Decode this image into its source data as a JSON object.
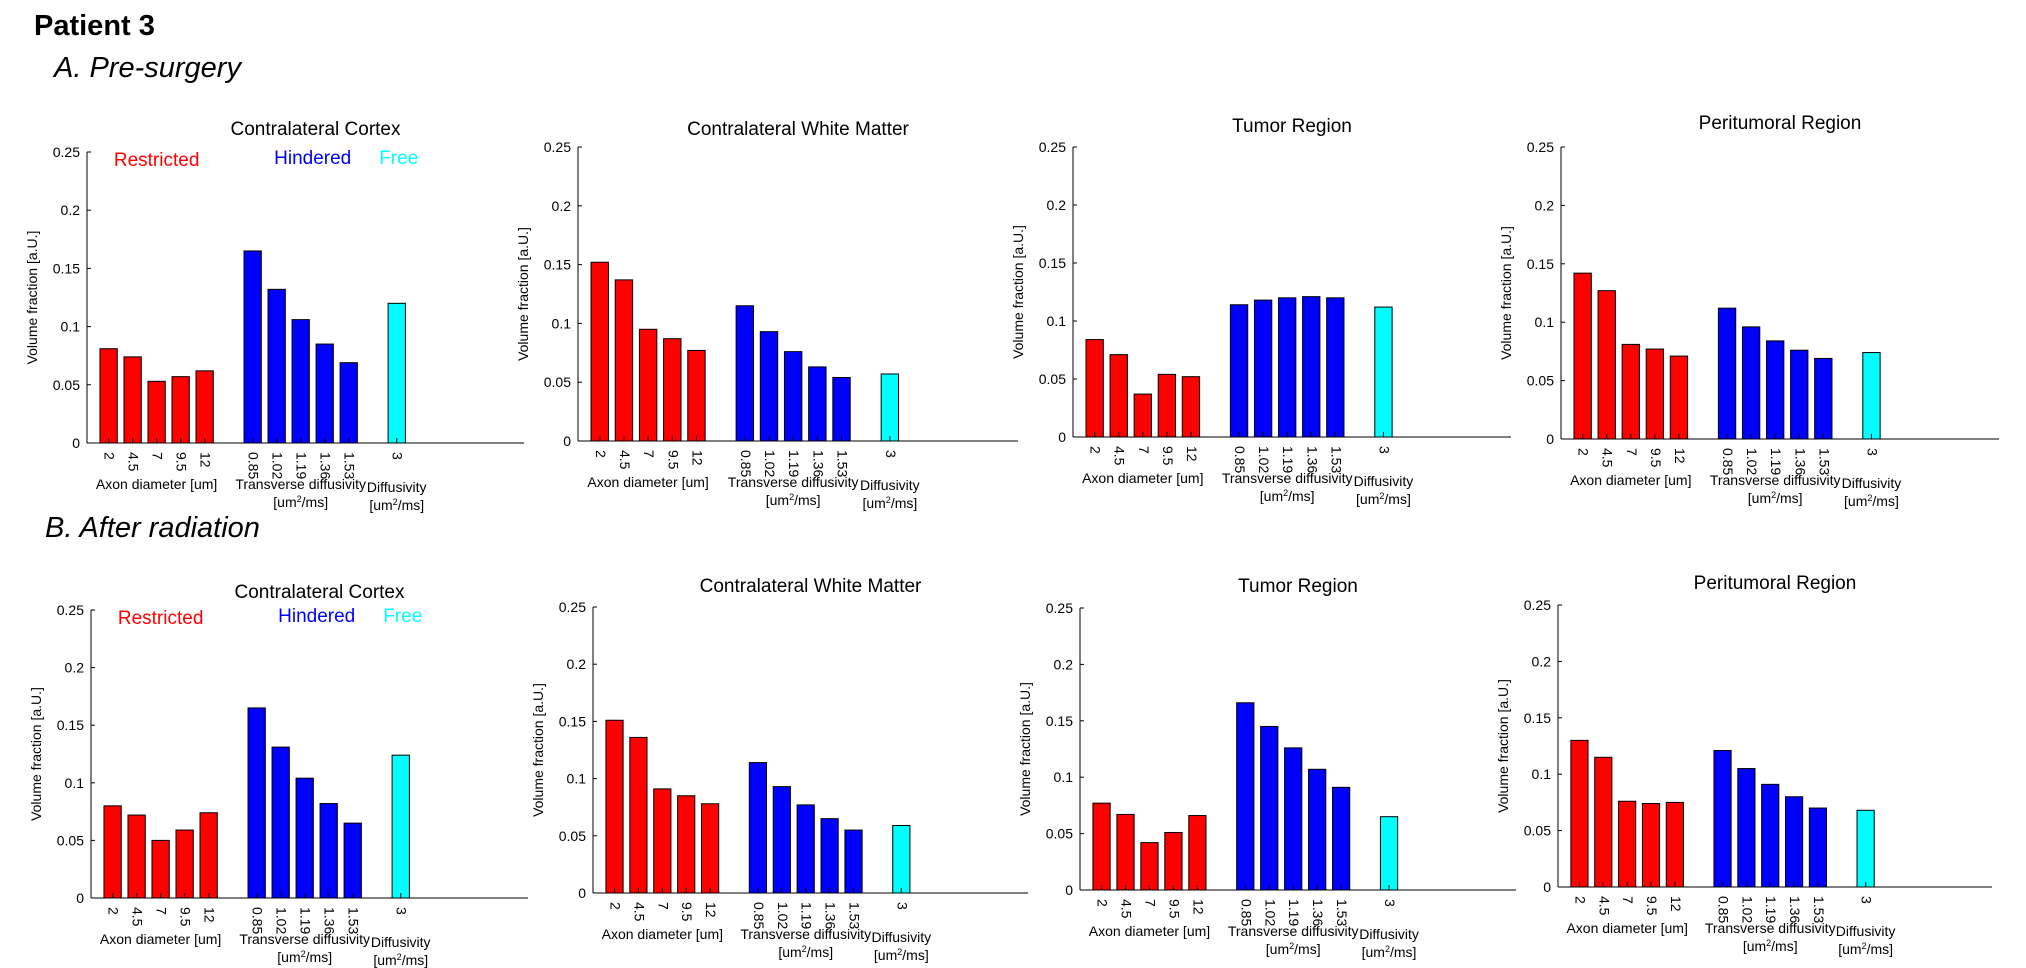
{
  "patient": "Patient 3",
  "colors": {
    "restricted": "#ff0000",
    "hindered": "#0000ff",
    "free": "#00ffff",
    "outline": "#000000"
  },
  "common": {
    "ylabel": "Volume fraction [a.U.]",
    "yticks": [
      "0",
      "0.05",
      "0.1",
      "0.15",
      "0.2",
      "0.25"
    ],
    "ylim": [
      0,
      0.25
    ],
    "restricted_ticks": [
      "2",
      "4.5",
      "7",
      "9.5",
      "12"
    ],
    "hindered_ticks": [
      "0.85",
      "1.02",
      "1.19",
      "1.36",
      "1.53"
    ],
    "free_ticks": [
      "3"
    ],
    "xlabel_restricted": "Axon diameter [um]",
    "xlabel_hindered_1": "Transverse diffusivity",
    "xlabel_hindered_2": "[um²/ms]",
    "xlabel_free_1": "Diffusivity",
    "xlabel_free_2": "[um²/ms]",
    "legend": {
      "restricted": "Restricted",
      "hindered": "Hindered",
      "free": "Free"
    }
  },
  "sections": [
    {
      "label": "A. Pre-surgery"
    },
    {
      "label": "B. After radiation"
    }
  ],
  "chart_data": [
    {
      "type": "bar",
      "section": "A. Pre-surgery",
      "title": "Contralateral Cortex",
      "ylim": [
        0,
        0.25
      ],
      "show_legend": true,
      "series": [
        {
          "name": "Restricted",
          "x": [
            "2",
            "4.5",
            "7",
            "9.5",
            "12"
          ],
          "values": [
            0.081,
            0.074,
            0.053,
            0.057,
            0.062
          ]
        },
        {
          "name": "Hindered",
          "x": [
            "0.85",
            "1.02",
            "1.19",
            "1.36",
            "1.53"
          ],
          "values": [
            0.165,
            0.132,
            0.106,
            0.085,
            0.069
          ]
        },
        {
          "name": "Free",
          "x": [
            "3"
          ],
          "values": [
            0.12
          ]
        }
      ]
    },
    {
      "type": "bar",
      "section": "A. Pre-surgery",
      "title": "Contralateral White Matter",
      "ylim": [
        0,
        0.25
      ],
      "show_legend": false,
      "series": [
        {
          "name": "Restricted",
          "x": [
            "2",
            "4.5",
            "7",
            "9.5",
            "12"
          ],
          "values": [
            0.152,
            0.137,
            0.095,
            0.087,
            0.077
          ]
        },
        {
          "name": "Hindered",
          "x": [
            "0.85",
            "1.02",
            "1.19",
            "1.36",
            "1.53"
          ],
          "values": [
            0.115,
            0.093,
            0.076,
            0.063,
            0.054
          ]
        },
        {
          "name": "Free",
          "x": [
            "3"
          ],
          "values": [
            0.057
          ]
        }
      ]
    },
    {
      "type": "bar",
      "section": "A. Pre-surgery",
      "title": "Tumor Region",
      "ylim": [
        0,
        0.25
      ],
      "show_legend": false,
      "series": [
        {
          "name": "Restricted",
          "x": [
            "2",
            "4.5",
            "7",
            "9.5",
            "12"
          ],
          "values": [
            0.084,
            0.071,
            0.037,
            0.054,
            0.052
          ]
        },
        {
          "name": "Hindered",
          "x": [
            "0.85",
            "1.02",
            "1.19",
            "1.36",
            "1.53"
          ],
          "values": [
            0.114,
            0.118,
            0.12,
            0.121,
            0.12
          ]
        },
        {
          "name": "Free",
          "x": [
            "3"
          ],
          "values": [
            0.112
          ]
        }
      ]
    },
    {
      "type": "bar",
      "section": "A. Pre-surgery",
      "title": "Peritumoral Region",
      "ylim": [
        0,
        0.25
      ],
      "show_legend": false,
      "series": [
        {
          "name": "Restricted",
          "x": [
            "2",
            "4.5",
            "7",
            "9.5",
            "12"
          ],
          "values": [
            0.142,
            0.127,
            0.081,
            0.077,
            0.071
          ]
        },
        {
          "name": "Hindered",
          "x": [
            "0.85",
            "1.02",
            "1.19",
            "1.36",
            "1.53"
          ],
          "values": [
            0.112,
            0.096,
            0.084,
            0.076,
            0.069
          ]
        },
        {
          "name": "Free",
          "x": [
            "3"
          ],
          "values": [
            0.074
          ]
        }
      ]
    },
    {
      "type": "bar",
      "section": "B. After radiation",
      "title": "Contralateral Cortex",
      "ylim": [
        0,
        0.25
      ],
      "show_legend": true,
      "series": [
        {
          "name": "Restricted",
          "x": [
            "2",
            "4.5",
            "7",
            "9.5",
            "12"
          ],
          "values": [
            0.08,
            0.072,
            0.05,
            0.059,
            0.074
          ]
        },
        {
          "name": "Hindered",
          "x": [
            "0.85",
            "1.02",
            "1.19",
            "1.36",
            "1.53"
          ],
          "values": [
            0.165,
            0.131,
            0.104,
            0.082,
            0.065
          ]
        },
        {
          "name": "Free",
          "x": [
            "3"
          ],
          "values": [
            0.124
          ]
        }
      ]
    },
    {
      "type": "bar",
      "section": "B. After radiation",
      "title": "Contralateral White Matter",
      "ylim": [
        0,
        0.25
      ],
      "show_legend": false,
      "series": [
        {
          "name": "Restricted",
          "x": [
            "2",
            "4.5",
            "7",
            "9.5",
            "12"
          ],
          "values": [
            0.151,
            0.136,
            0.091,
            0.085,
            0.078
          ]
        },
        {
          "name": "Hindered",
          "x": [
            "0.85",
            "1.02",
            "1.19",
            "1.36",
            "1.53"
          ],
          "values": [
            0.114,
            0.093,
            0.077,
            0.065,
            0.055
          ]
        },
        {
          "name": "Free",
          "x": [
            "3"
          ],
          "values": [
            0.059
          ]
        }
      ]
    },
    {
      "type": "bar",
      "section": "B. After radiation",
      "title": "Tumor Region",
      "ylim": [
        0,
        0.25
      ],
      "show_legend": false,
      "series": [
        {
          "name": "Restricted",
          "x": [
            "2",
            "4.5",
            "7",
            "9.5",
            "12"
          ],
          "values": [
            0.077,
            0.067,
            0.042,
            0.051,
            0.066
          ]
        },
        {
          "name": "Hindered",
          "x": [
            "0.85",
            "1.02",
            "1.19",
            "1.36",
            "1.53"
          ],
          "values": [
            0.166,
            0.145,
            0.126,
            0.107,
            0.091
          ]
        },
        {
          "name": "Free",
          "x": [
            "3"
          ],
          "values": [
            0.065
          ]
        }
      ]
    },
    {
      "type": "bar",
      "section": "B. After radiation",
      "title": "Peritumoral Region",
      "ylim": [
        0,
        0.25
      ],
      "show_legend": false,
      "series": [
        {
          "name": "Restricted",
          "x": [
            "2",
            "4.5",
            "7",
            "9.5",
            "12"
          ],
          "values": [
            0.13,
            0.115,
            0.076,
            0.074,
            0.075
          ]
        },
        {
          "name": "Hindered",
          "x": [
            "0.85",
            "1.02",
            "1.19",
            "1.36",
            "1.53"
          ],
          "values": [
            0.121,
            0.105,
            0.091,
            0.08,
            0.07
          ]
        },
        {
          "name": "Free",
          "x": [
            "3"
          ],
          "values": [
            0.068
          ]
        }
      ]
    }
  ]
}
